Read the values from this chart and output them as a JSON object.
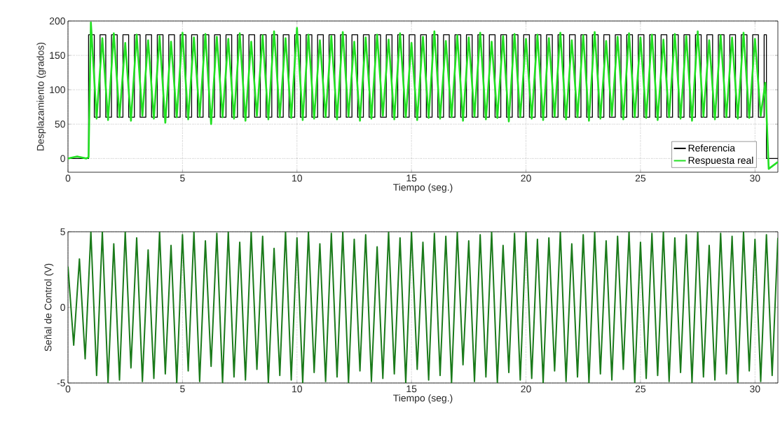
{
  "chart_data": [
    {
      "type": "line",
      "xlabel": "Tiempo (seg.)",
      "ylabel": "Desplazamiento (grados)",
      "xlim": [
        0,
        31
      ],
      "ylim": [
        -20,
        200
      ],
      "xticks": [
        0,
        5,
        10,
        15,
        20,
        25,
        30
      ],
      "yticks": [
        0,
        50,
        100,
        150,
        200
      ],
      "grid": true,
      "legend": "bottom right",
      "series": [
        {
          "name": "Referencia",
          "type": "step",
          "color": "#000000",
          "x": [
            0,
            0.9,
            1.15,
            1.4,
            1.65,
            1.9,
            2.15,
            2.4,
            2.65,
            2.9,
            3.15,
            3.4,
            3.65,
            3.9,
            4.15,
            4.4,
            4.65,
            4.9,
            5.15,
            5.4,
            5.65,
            5.9,
            6.15,
            6.4,
            6.65,
            6.9,
            7.15,
            7.4,
            7.65,
            7.9,
            8.15,
            8.4,
            8.65,
            8.9,
            9.15,
            9.4,
            9.65,
            9.9,
            10.15,
            10.4,
            10.65,
            10.9,
            11.15,
            11.4,
            11.65,
            11.9,
            12.15,
            12.4,
            12.65,
            12.9,
            13.15,
            13.4,
            13.65,
            13.9,
            14.15,
            14.4,
            14.65,
            14.9,
            15.15,
            15.4,
            15.65,
            15.9,
            16.15,
            16.4,
            16.65,
            16.9,
            17.15,
            17.4,
            17.65,
            17.9,
            18.15,
            18.4,
            18.65,
            18.9,
            19.15,
            19.4,
            19.65,
            19.9,
            20.15,
            20.4,
            20.65,
            20.9,
            21.15,
            21.4,
            21.65,
            21.9,
            22.15,
            22.4,
            22.65,
            22.9,
            23.15,
            23.4,
            23.65,
            23.9,
            24.15,
            24.4,
            24.65,
            24.9,
            25.15,
            25.4,
            25.65,
            25.9,
            26.15,
            26.4,
            26.65,
            26.9,
            27.15,
            27.4,
            27.65,
            27.9,
            28.15,
            28.4,
            28.65,
            28.9,
            29.15,
            29.4,
            29.65,
            29.9,
            30.15,
            30.4,
            30.5,
            31
          ],
          "values": [
            0,
            180,
            60,
            180,
            60,
            180,
            60,
            180,
            60,
            180,
            60,
            180,
            60,
            180,
            60,
            180,
            60,
            180,
            60,
            180,
            60,
            180,
            60,
            180,
            60,
            180,
            60,
            180,
            60,
            180,
            60,
            180,
            60,
            180,
            60,
            180,
            60,
            180,
            60,
            180,
            60,
            180,
            60,
            180,
            60,
            180,
            60,
            180,
            60,
            180,
            60,
            180,
            60,
            180,
            60,
            180,
            60,
            180,
            60,
            180,
            60,
            180,
            60,
            180,
            60,
            180,
            60,
            180,
            60,
            180,
            60,
            180,
            60,
            180,
            60,
            180,
            60,
            180,
            60,
            180,
            60,
            180,
            60,
            180,
            60,
            180,
            60,
            180,
            60,
            180,
            60,
            180,
            60,
            180,
            60,
            180,
            60,
            180,
            60,
            180,
            60,
            180,
            60,
            180,
            60,
            180,
            60,
            180,
            60,
            180,
            60,
            180,
            60,
            180,
            60,
            180,
            60,
            180,
            60,
            180,
            0,
            0
          ]
        },
        {
          "name": "Respuesta real",
          "type": "line",
          "color": "#22e022",
          "x": [
            0,
            0.4,
            0.8,
            0.9,
            1.0,
            1.25,
            1.5,
            1.75,
            2.0,
            2.25,
            2.5,
            2.75,
            3.0,
            3.25,
            3.5,
            3.75,
            4.0,
            4.25,
            4.5,
            4.75,
            5.0,
            5.25,
            5.5,
            5.75,
            6.0,
            6.25,
            6.5,
            6.75,
            7.0,
            7.25,
            7.5,
            7.75,
            8.0,
            8.25,
            8.5,
            8.75,
            9.0,
            9.25,
            9.5,
            9.75,
            10.0,
            10.25,
            10.5,
            10.75,
            11.0,
            11.25,
            11.5,
            11.75,
            12.0,
            12.25,
            12.5,
            12.75,
            13.0,
            13.25,
            13.5,
            13.75,
            14.0,
            14.25,
            14.5,
            14.75,
            15.0,
            15.25,
            15.5,
            15.75,
            16.0,
            16.25,
            16.5,
            16.75,
            17.0,
            17.25,
            17.5,
            17.75,
            18.0,
            18.25,
            18.5,
            18.75,
            19.0,
            19.25,
            19.5,
            19.75,
            20.0,
            20.25,
            20.5,
            20.75,
            21.0,
            21.25,
            21.5,
            21.75,
            22.0,
            22.25,
            22.5,
            22.75,
            23.0,
            23.25,
            23.5,
            23.75,
            24.0,
            24.25,
            24.5,
            24.75,
            25.0,
            25.25,
            25.5,
            25.75,
            26.0,
            26.25,
            26.5,
            26.75,
            27.0,
            27.25,
            27.5,
            27.75,
            28.0,
            28.25,
            28.5,
            28.75,
            29.0,
            29.25,
            29.5,
            29.75,
            30.0,
            30.25,
            30.45,
            30.6,
            31
          ],
          "values": [
            0,
            3,
            0,
            2,
            198,
            58,
            175,
            56,
            182,
            60,
            168,
            55,
            180,
            62,
            172,
            58,
            178,
            52,
            170,
            60,
            183,
            57,
            176,
            61,
            181,
            50,
            177,
            60,
            174,
            58,
            182,
            55,
            170,
            62,
            179,
            57,
            185,
            60,
            175,
            59,
            190,
            56,
            180,
            58,
            172,
            60,
            178,
            57,
            184,
            61,
            170,
            55,
            176,
            58,
            180,
            62,
            173,
            57,
            182,
            60,
            168,
            56,
            177,
            59,
            185,
            58,
            171,
            60,
            179,
            55,
            176,
            61,
            183,
            57,
            170,
            59,
            178,
            54,
            181,
            60,
            174,
            58,
            180,
            56,
            175,
            61,
            183,
            57,
            172,
            60,
            179,
            55,
            184,
            58,
            171,
            62,
            177,
            57,
            182,
            60,
            176,
            59,
            180,
            56,
            173,
            60,
            181,
            58,
            178,
            55,
            185,
            61,
            172,
            57,
            179,
            60,
            176,
            58,
            183,
            59,
            174,
            62,
            110,
            -15,
            -5
          ]
        }
      ]
    },
    {
      "type": "line",
      "xlabel": "Tiempo (seg.)",
      "ylabel": "Señal de Control (V)",
      "xlim": [
        0,
        31
      ],
      "ylim": [
        -5,
        5
      ],
      "xticks": [
        0,
        5,
        10,
        15,
        20,
        25,
        30
      ],
      "yticks": [
        -5,
        0,
        5
      ],
      "grid": true,
      "series": [
        {
          "color": "#1a7a1a",
          "x": [
            0,
            0.25,
            0.5,
            0.75,
            1,
            1.25,
            1.5,
            1.75,
            2,
            2.25,
            2.5,
            2.75,
            3,
            3.25,
            3.5,
            3.75,
            4,
            4.25,
            4.5,
            4.75,
            5,
            5.25,
            5.5,
            5.75,
            6,
            6.25,
            6.5,
            6.75,
            7,
            7.25,
            7.5,
            7.75,
            8,
            8.25,
            8.5,
            8.75,
            9,
            9.25,
            9.5,
            9.75,
            10,
            10.25,
            10.5,
            10.75,
            11,
            11.25,
            11.5,
            11.75,
            12,
            12.25,
            12.5,
            12.75,
            13,
            13.25,
            13.5,
            13.75,
            14,
            14.25,
            14.5,
            14.75,
            15,
            15.25,
            15.5,
            15.75,
            16,
            16.25,
            16.5,
            16.75,
            17,
            17.25,
            17.5,
            17.75,
            18,
            18.25,
            18.5,
            18.75,
            19,
            19.25,
            19.5,
            19.75,
            20,
            20.25,
            20.5,
            20.75,
            21,
            21.25,
            21.5,
            21.75,
            22,
            22.25,
            22.5,
            22.75,
            23,
            23.25,
            23.5,
            23.75,
            24,
            24.25,
            24.5,
            24.75,
            25,
            25.25,
            25.5,
            25.75,
            26,
            26.25,
            26.5,
            26.75,
            27,
            27.25,
            27.5,
            27.75,
            28,
            28.25,
            28.5,
            28.75,
            29,
            29.25,
            29.5,
            29.75,
            30,
            30.25,
            30.5,
            30.75,
            31
          ],
          "values": [
            2.7,
            -2.5,
            3.2,
            -3.4,
            5,
            -4.5,
            5,
            -5,
            4.2,
            -4.8,
            5,
            -4,
            4.6,
            -4.9,
            3.8,
            -4.7,
            5,
            -4.4,
            4.1,
            -5,
            4.8,
            -4.2,
            5,
            -4.9,
            4.4,
            -3.9,
            4.9,
            -5,
            5,
            -4.6,
            4.3,
            -4.8,
            5,
            -4.1,
            4.7,
            -5,
            3.9,
            -4.5,
            5,
            -4.8,
            4.6,
            -5,
            5,
            -4.3,
            4.2,
            -4.9,
            4.9,
            -4.6,
            5,
            -5,
            4.5,
            -4.2,
            4.8,
            -4.9,
            4,
            -4.7,
            5,
            -4.4,
            4.6,
            -5,
            5,
            -4.1,
            4.3,
            -4.8,
            4.9,
            -4.5,
            4.7,
            -5,
            5,
            -3.8,
            4.4,
            -4.9,
            4.8,
            -4.6,
            5,
            -5,
            4.1,
            -4.3,
            4.9,
            -4.8,
            5,
            -4.7,
            4.5,
            -5,
            4.6,
            -4.2,
            5,
            -4.9,
            4.2,
            -4.6,
            4.8,
            -5,
            5,
            -4.4,
            4.4,
            -4.8,
            4.7,
            -4.1,
            5,
            -5,
            4.3,
            -4.7,
            4.9,
            -4.5,
            5,
            -4.9,
            4.6,
            -4.3,
            4.8,
            -5,
            5,
            -4.6,
            4.1,
            -4.8,
            4.9,
            -4.4,
            4.7,
            -5,
            5,
            -4.2,
            4.5,
            -4.9,
            4.8,
            -4.5,
            4.6
          ]
        }
      ]
    }
  ]
}
